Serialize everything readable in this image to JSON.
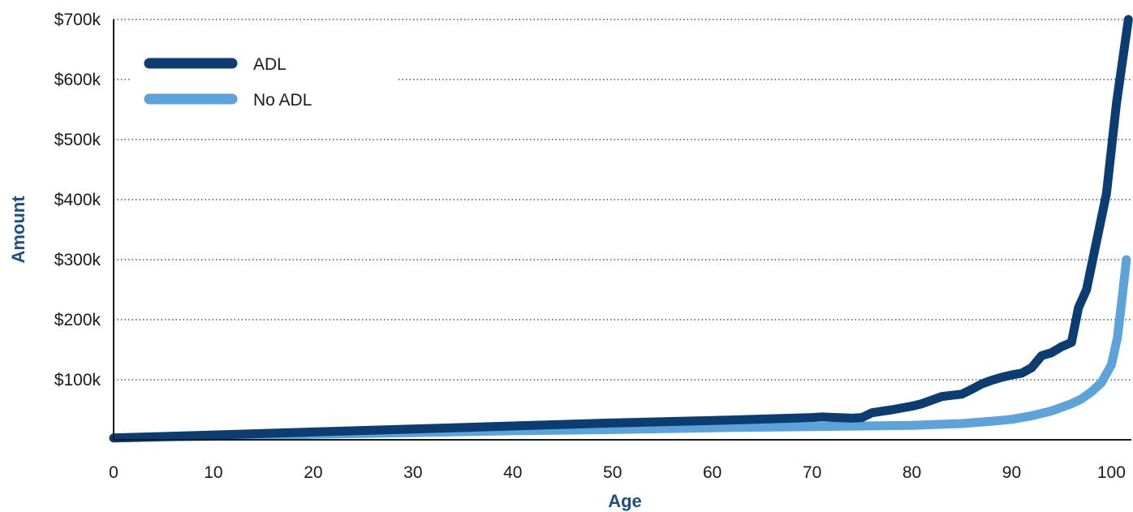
{
  "chart_data": {
    "type": "line",
    "title": "",
    "xlabel": "Age",
    "ylabel": "Amount",
    "xlim": [
      0,
      102
    ],
    "ylim": [
      0,
      700000
    ],
    "x_ticks": [
      0,
      10,
      20,
      30,
      40,
      50,
      60,
      70,
      80,
      90,
      100
    ],
    "x_tick_labels": [
      "0",
      "10",
      "20",
      "30",
      "40",
      "50",
      "60",
      "70",
      "80",
      "90",
      "100"
    ],
    "y_ticks": [
      100000,
      200000,
      300000,
      400000,
      500000,
      600000,
      700000
    ],
    "y_tick_labels": [
      "$100k",
      "$200k",
      "$300k",
      "$400k",
      "$500k",
      "$600k",
      "$700k"
    ],
    "grid": "horizontal dotted",
    "legend_position": "top-left",
    "series": [
      {
        "name": "ADL",
        "color": "#0b3d73",
        "points": [
          [
            0,
            3000
          ],
          [
            10,
            8000
          ],
          [
            20,
            13000
          ],
          [
            30,
            18000
          ],
          [
            40,
            23000
          ],
          [
            50,
            28000
          ],
          [
            60,
            32000
          ],
          [
            70,
            37000
          ],
          [
            71,
            38000
          ],
          [
            74,
            36000
          ],
          [
            75,
            37000
          ],
          [
            76,
            45000
          ],
          [
            78,
            50000
          ],
          [
            80,
            56000
          ],
          [
            81,
            60000
          ],
          [
            83,
            72000
          ],
          [
            84,
            74000
          ],
          [
            85,
            76000
          ],
          [
            86,
            84000
          ],
          [
            87,
            93000
          ],
          [
            88,
            99000
          ],
          [
            89,
            104000
          ],
          [
            90,
            108000
          ],
          [
            91,
            111000
          ],
          [
            92,
            120000
          ],
          [
            93,
            140000
          ],
          [
            94,
            145000
          ],
          [
            95,
            155000
          ],
          [
            96,
            162000
          ],
          [
            96.7,
            220000
          ],
          [
            97.5,
            250000
          ],
          [
            98.5,
            330000
          ],
          [
            99.5,
            410000
          ],
          [
            100.5,
            560000
          ],
          [
            101.7,
            700000
          ]
        ]
      },
      {
        "name": "No ADL",
        "color": "#5ba3d9",
        "points": [
          [
            0,
            3000
          ],
          [
            10,
            6000
          ],
          [
            20,
            9000
          ],
          [
            30,
            12000
          ],
          [
            40,
            15000
          ],
          [
            50,
            17000
          ],
          [
            60,
            20000
          ],
          [
            70,
            22000
          ],
          [
            75,
            23000
          ],
          [
            80,
            24000
          ],
          [
            85,
            27000
          ],
          [
            88,
            31000
          ],
          [
            90,
            34000
          ],
          [
            92,
            40000
          ],
          [
            94,
            48000
          ],
          [
            96,
            60000
          ],
          [
            97,
            68000
          ],
          [
            98,
            80000
          ],
          [
            99,
            95000
          ],
          [
            100,
            125000
          ],
          [
            100.6,
            170000
          ],
          [
            101.1,
            240000
          ],
          [
            101.5,
            300000
          ]
        ]
      }
    ]
  }
}
